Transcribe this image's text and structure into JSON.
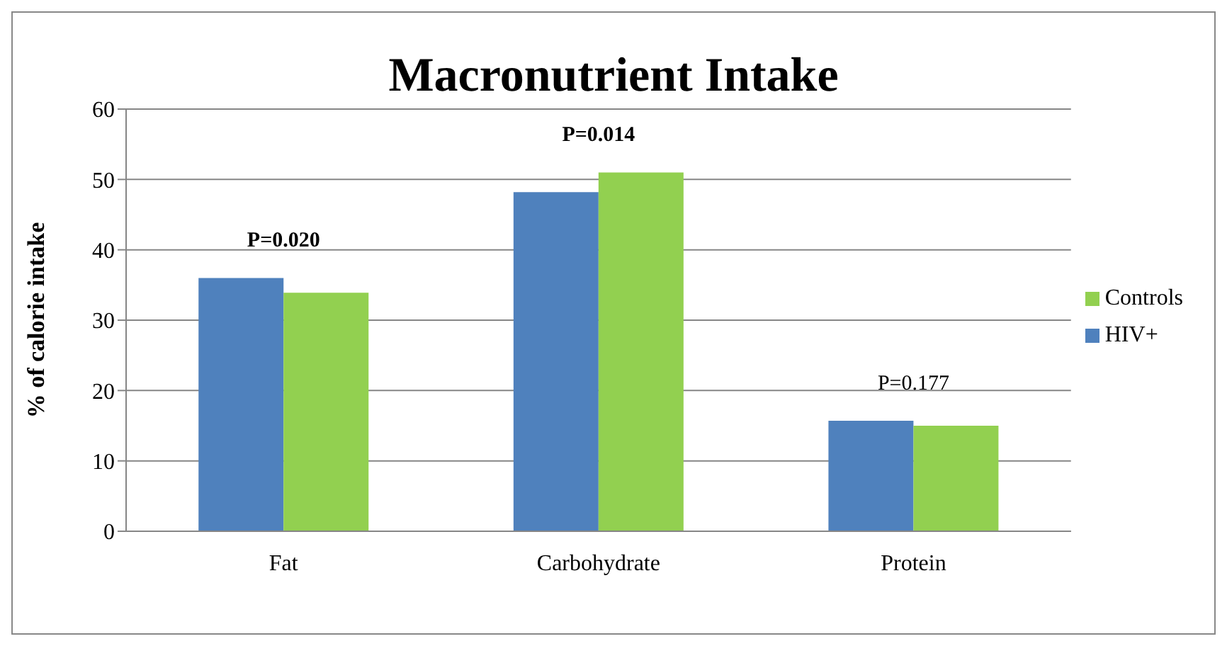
{
  "chart_data": {
    "type": "bar",
    "title": "Macronutrient Intake",
    "ylabel": "% of calorie intake",
    "categories": [
      "Fat",
      "Carbohydrate",
      "Protein"
    ],
    "series": [
      {
        "name": "HIV+",
        "color": "#4f81bd",
        "values": [
          36,
          48.2,
          15.7
        ]
      },
      {
        "name": "Controls",
        "color": "#92d050",
        "values": [
          33.9,
          51,
          15
        ]
      }
    ],
    "ylim": [
      0,
      60
    ],
    "yticks": [
      0,
      10,
      20,
      30,
      40,
      50,
      60
    ],
    "grid": "y",
    "legend": "right",
    "annotations": [
      "P=0.020",
      "P=0.014",
      "P=0.177"
    ]
  }
}
